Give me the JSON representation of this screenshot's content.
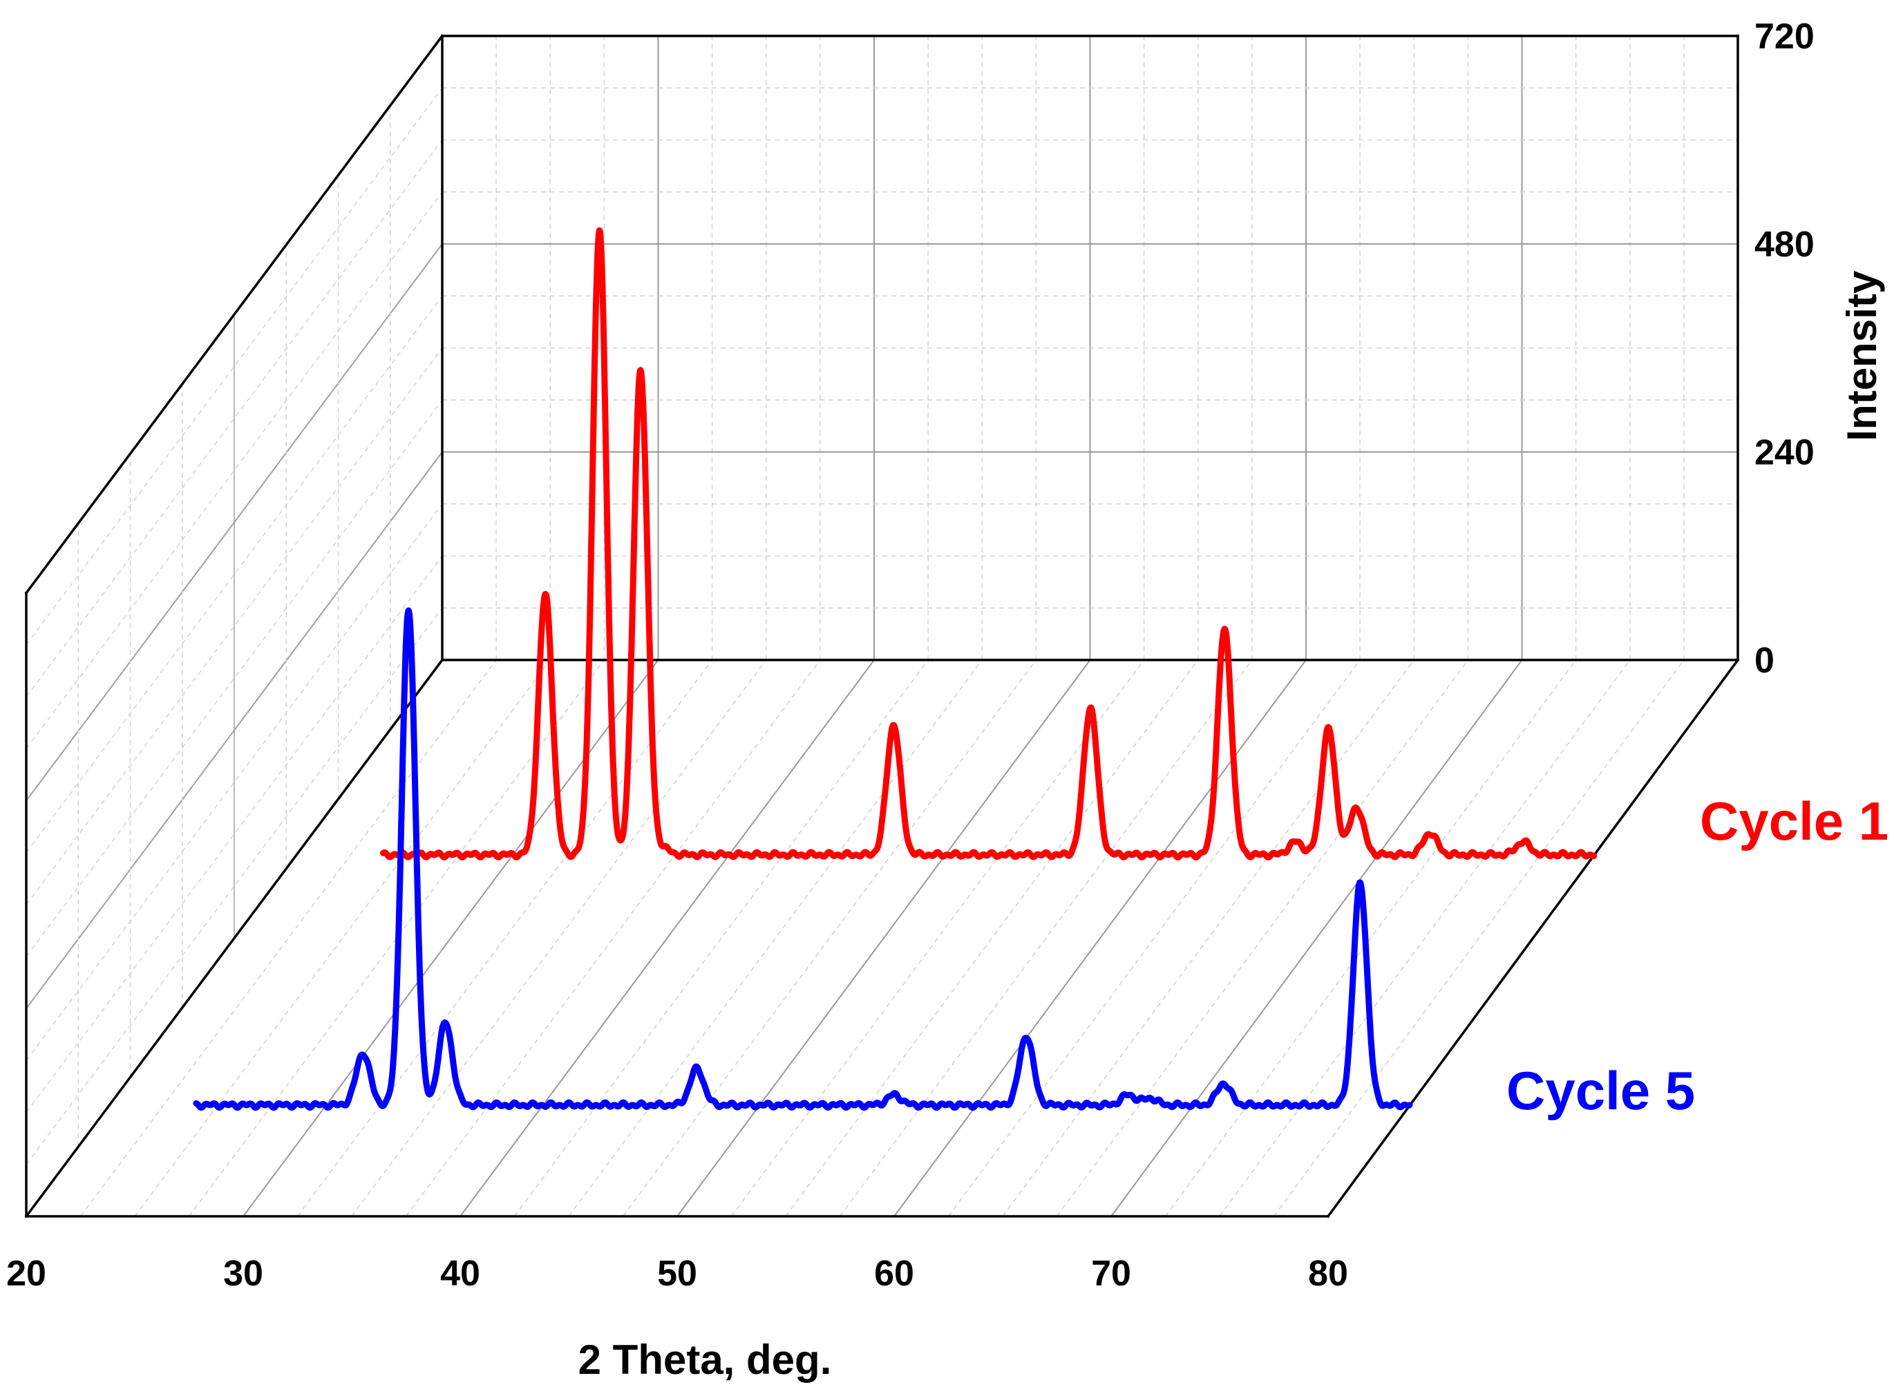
{
  "chart_data": {
    "type": "line",
    "title": "",
    "xlabel": "2 Theta, deg.",
    "ylabel": "Intensity",
    "xlim": [
      20,
      80
    ],
    "ylim": [
      0,
      720
    ],
    "x_ticks": [
      20,
      30,
      40,
      50,
      60,
      70,
      80
    ],
    "y_ticks": [
      0,
      240,
      480,
      720
    ],
    "grid": true,
    "projection": "3d-waterfall",
    "series": [
      {
        "name": "Cycle 1",
        "color": "#ff0000",
        "depth": "back",
        "baseline": 0,
        "peaks": [
          {
            "x": 31.5,
            "y": 300
          },
          {
            "x": 34.0,
            "y": 720
          },
          {
            "x": 35.9,
            "y": 560
          },
          {
            "x": 36.9,
            "y": 8
          },
          {
            "x": 47.6,
            "y": 150
          },
          {
            "x": 56.7,
            "y": 170
          },
          {
            "x": 62.9,
            "y": 260
          },
          {
            "x": 66.2,
            "y": 15
          },
          {
            "x": 67.7,
            "y": 145
          },
          {
            "x": 69.0,
            "y": 55
          },
          {
            "x": 72.4,
            "y": 25
          },
          {
            "x": 76.7,
            "y": 15
          }
        ]
      },
      {
        "name": "Cycle 5",
        "color": "#0000ff",
        "depth": "front",
        "baseline": 0,
        "peaks": [
          {
            "x": 31.7,
            "y": 60
          },
          {
            "x": 33.8,
            "y": 570
          },
          {
            "x": 35.5,
            "y": 95
          },
          {
            "x": 47.1,
            "y": 42
          },
          {
            "x": 56.2,
            "y": 12
          },
          {
            "x": 62.3,
            "y": 80
          },
          {
            "x": 67.0,
            "y": 12
          },
          {
            "x": 68.0,
            "y": 8
          },
          {
            "x": 71.4,
            "y": 25
          },
          {
            "x": 77.7,
            "y": 255
          }
        ]
      }
    ]
  }
}
